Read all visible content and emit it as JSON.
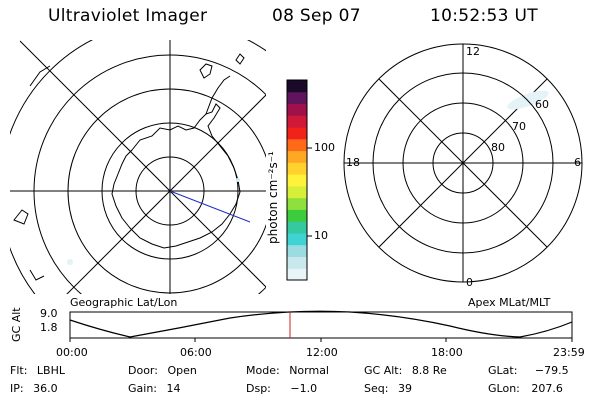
{
  "header": {
    "instrument": "Ultraviolet Imager",
    "date": "08 Sep 07",
    "time": "10:52:53 UT"
  },
  "colorbar": {
    "unit_label": "photon cm⁻²s⁻¹",
    "tick_100": "100",
    "tick_10": "10",
    "colors": [
      "#e8f4f8",
      "#c8e8ee",
      "#9adce0",
      "#3fd3d3",
      "#36c9a0",
      "#3dcc3d",
      "#8ee03c",
      "#d8ef3a",
      "#fff23a",
      "#ffd22e",
      "#ffa824",
      "#ff6a1a",
      "#f0221a",
      "#d01838",
      "#a0104a",
      "#60145c",
      "#1a0a2a"
    ]
  },
  "left_map": {
    "caption": "Geographic Lat/Lon"
  },
  "right_map": {
    "caption": "Apex MLat/MLT",
    "mlt_top": "12",
    "mlt_left": "18",
    "mlt_right": "6",
    "mlt_bottom": "0",
    "lat_60": "60",
    "lat_70": "70",
    "lat_80": "80"
  },
  "altitude_plot": {
    "ylabel": "GC Alt",
    "y_ticks": [
      "9.0",
      "1.8"
    ],
    "x_ticks": [
      "00:00",
      "06:00",
      "12:00",
      "18:00",
      "23:59"
    ],
    "current_time_marker_color": "#d02020"
  },
  "info": {
    "flt_label": "Flt:",
    "flt_value": "LBHL",
    "door_label": "Door:",
    "door_value": "Open",
    "mode_label": "Mode:",
    "mode_value": "Normal",
    "gcalt_label": "GC Alt:",
    "gcalt_value": "8.8 Re",
    "glat_label": "GLat:",
    "glat_value": "−79.5",
    "ip_label": "IP:",
    "ip_value": "36.0",
    "gain_label": "Gain:",
    "gain_value": "14",
    "dsp_label": "Dsp:",
    "dsp_value": "−1.0",
    "seq_label": "Seq:",
    "seq_value": "39",
    "glon_label": "GLon:",
    "glon_value": "207.6"
  }
}
